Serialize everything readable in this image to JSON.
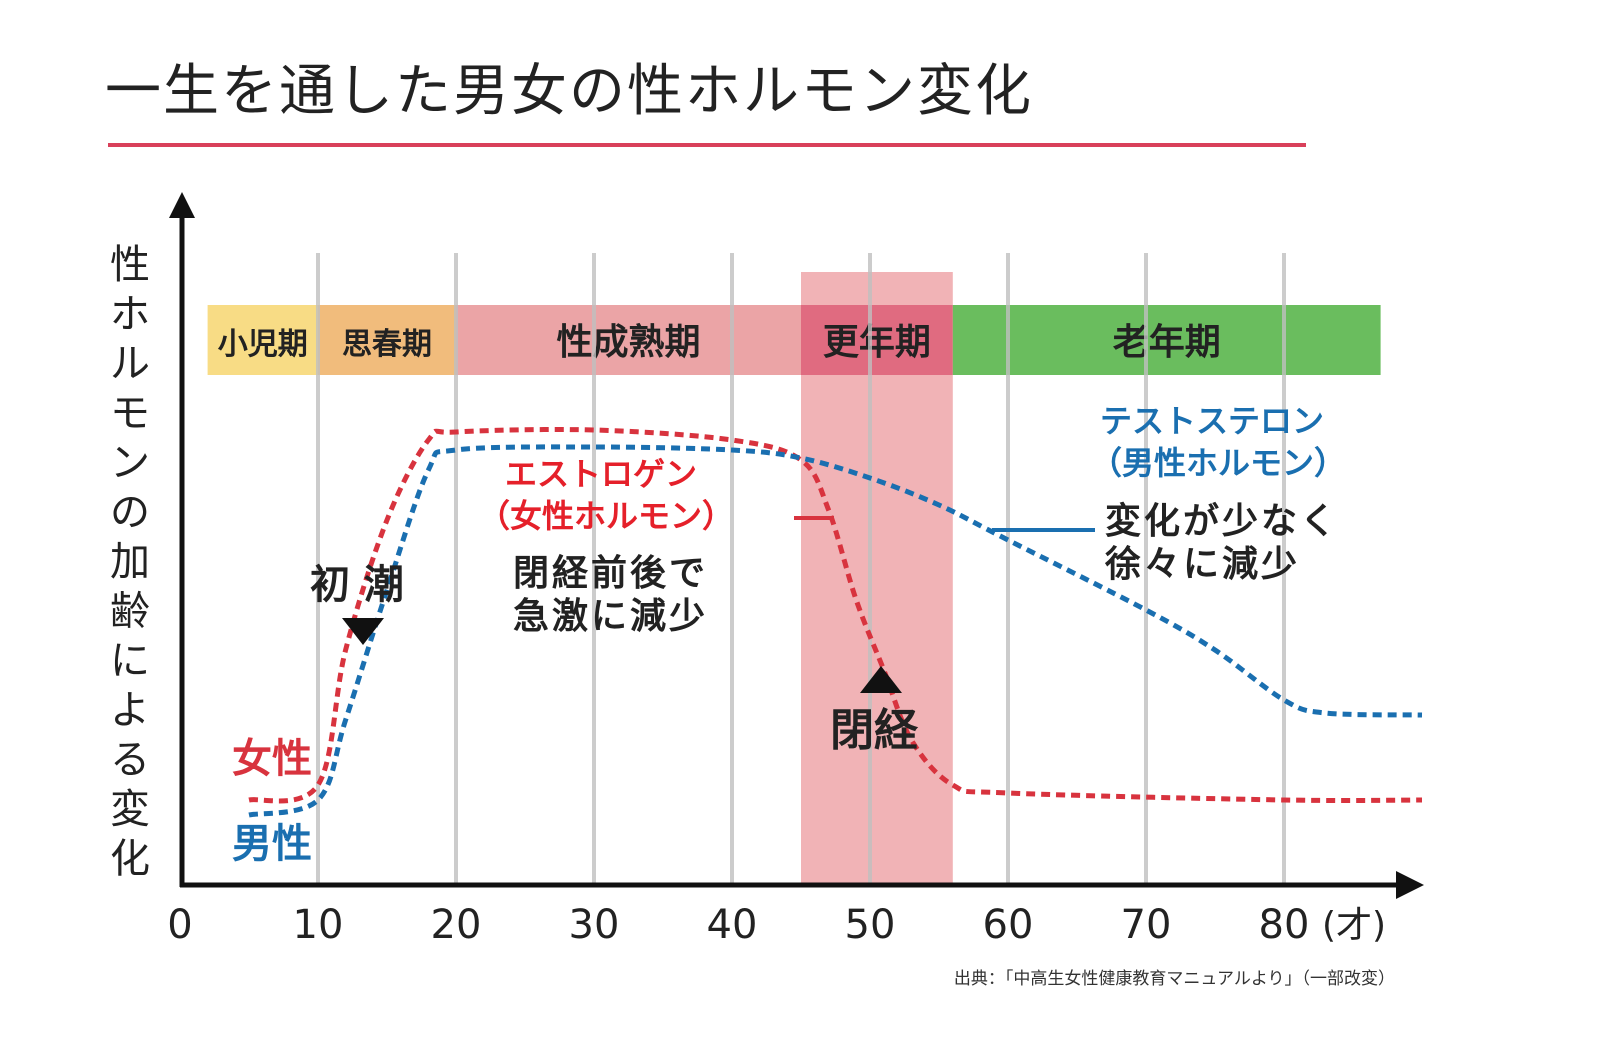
{
  "chart_data": {
    "type": "line",
    "title": "一生を通した男女の性ホルモン変化",
    "ylabel": "性ホルモンの加齢による変化",
    "xlabel": "",
    "x_unit": "(才)",
    "xlim": [
      0,
      90
    ],
    "ylim": [
      0,
      100
    ],
    "x_ticks": [
      "0",
      "10",
      "20",
      "30",
      "40",
      "50",
      "60",
      "70",
      "80"
    ],
    "grid": "vertical",
    "line_style": "dashed",
    "periods": [
      {
        "label": "小児期",
        "from": 2,
        "to": 10,
        "color": "#f8dc85"
      },
      {
        "label": "思春期",
        "from": 10,
        "to": 20,
        "color": "#f1bc7c"
      },
      {
        "label": "性成熟期",
        "from": 20,
        "to": 45,
        "color": "#eba4a6"
      },
      {
        "label": "更年期",
        "from": 45,
        "to": 56,
        "color": "#e06b80"
      },
      {
        "label": "老年期",
        "from": 56,
        "to": 87,
        "color": "#6abd5e"
      }
    ],
    "highlight_range": {
      "from": 45,
      "to": 56,
      "color": "#f1b3b6"
    },
    "series": [
      {
        "name": "女性",
        "label": "エストロゲン",
        "sublabel": "（女性ホルモン）",
        "color": "#d8333e",
        "x": [
          5,
          10,
          12,
          15,
          18,
          20,
          30,
          40,
          45,
          47,
          49,
          51,
          53,
          56,
          60,
          80,
          90
        ],
        "y": [
          17,
          20,
          47,
          73,
          89,
          90.6,
          91,
          89,
          85,
          75,
          57,
          43,
          29,
          20,
          18.4,
          17,
          17
        ]
      },
      {
        "name": "男性",
        "label": "テストステロン",
        "sublabel": "（男性ホルモン）",
        "color": "#1a6fb0",
        "x": [
          5,
          10,
          12,
          15,
          18,
          20,
          30,
          40,
          45,
          50,
          55,
          60,
          70,
          75,
          80,
          83,
          90
        ],
        "y": [
          14,
          17,
          33,
          59,
          83,
          87,
          87.6,
          87,
          85.4,
          81.4,
          76,
          69,
          55,
          47,
          37,
          34.4,
          34
        ]
      }
    ],
    "annotations": {
      "menarche": "初 潮",
      "menopause": "閉経",
      "estrogen_note": [
        "閉経前後で",
        "急激に減少"
      ],
      "testosterone_note": [
        "変化が少なく",
        "徐々に減少"
      ]
    },
    "source": "出典：「中高生女性健康教育マニュアルより」（一部改変）"
  },
  "colors": {
    "title_underline": "#d9405a",
    "grid": "#bfbfbf",
    "axis": "#111111"
  }
}
